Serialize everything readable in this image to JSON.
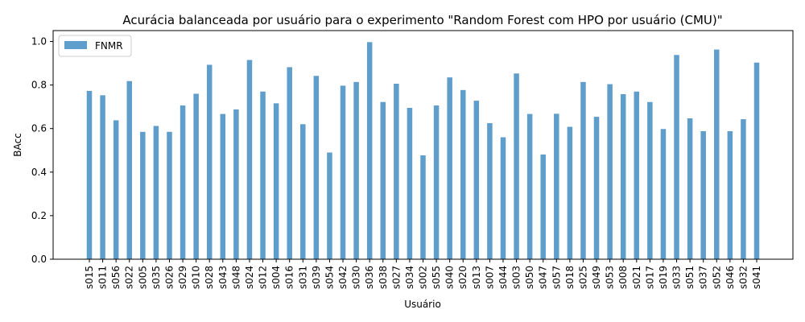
{
  "chart_data": {
    "type": "bar",
    "title": "Acurácia balanceada por usuário para o experimento \"Random Forest com HPO por usuário (CMU)\"",
    "xlabel": "Usuário",
    "ylabel": "BAcc",
    "ylim": [
      0,
      1.05
    ],
    "yticks": [
      "0.0",
      "0.2",
      "0.4",
      "0.6",
      "0.8",
      "1.0"
    ],
    "legend_position": "top-left",
    "grid": false,
    "bar_color": "#5f9dcb",
    "categories": [
      "s015",
      "s011",
      "s056",
      "s022",
      "s005",
      "s035",
      "s026",
      "s029",
      "s010",
      "s028",
      "s043",
      "s048",
      "s024",
      "s012",
      "s004",
      "s016",
      "s031",
      "s039",
      "s054",
      "s042",
      "s030",
      "s036",
      "s038",
      "s027",
      "s034",
      "s002",
      "s055",
      "s040",
      "s020",
      "s013",
      "s007",
      "s044",
      "s003",
      "s050",
      "s047",
      "s057",
      "s018",
      "s025",
      "s049",
      "s053",
      "s008",
      "s021",
      "s017",
      "s019",
      "s033",
      "s051",
      "s037",
      "s052",
      "s046",
      "s032",
      "s041"
    ],
    "series": [
      {
        "name": "FNMR",
        "values": [
          0.773,
          0.753,
          0.638,
          0.818,
          0.585,
          0.612,
          0.585,
          0.706,
          0.76,
          0.893,
          0.667,
          0.688,
          0.915,
          0.77,
          0.716,
          0.882,
          0.62,
          0.842,
          0.49,
          0.797,
          0.814,
          0.997,
          0.722,
          0.806,
          0.695,
          0.477,
          0.706,
          0.835,
          0.777,
          0.728,
          0.625,
          0.56,
          0.853,
          0.667,
          0.481,
          0.668,
          0.608,
          0.814,
          0.654,
          0.804,
          0.758,
          0.77,
          0.722,
          0.598,
          0.938,
          0.647,
          0.588,
          0.963,
          0.588,
          0.643,
          0.903
        ]
      }
    ]
  }
}
